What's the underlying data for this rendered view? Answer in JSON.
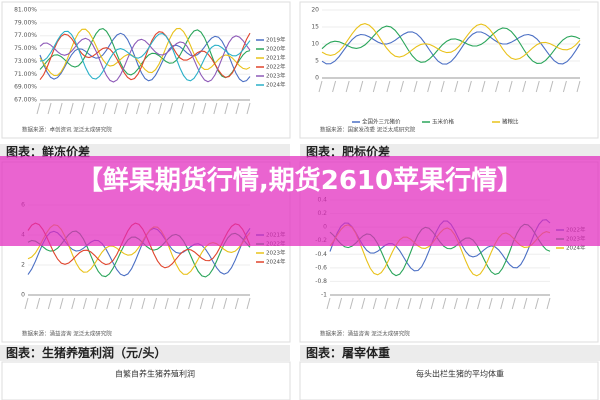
{
  "banner": {
    "title": "【鲜果期货行情,期货2610苹果行情】"
  },
  "panels": [
    {
      "yticks": [
        "81.00%",
        "79.00%",
        "77.00%",
        "75.00%",
        "73.00%",
        "71.00%",
        "69.00%",
        "67.00%"
      ],
      "legend": [
        "2019年",
        "2020年",
        "2021年",
        "2022年",
        "2023年",
        "2024年"
      ],
      "source": "数据来源：卓创资讯 泥泛太成研究院"
    },
    {
      "yticks": [
        "20",
        "15",
        "10",
        "5",
        "0"
      ],
      "legend": [
        "全国外三元猪价",
        "玉米价格",
        "猪粮比"
      ],
      "source": "数据来源：国家发改委 泥泛太成研究院"
    },
    {
      "header": "图表：鲜冻价差",
      "yticks": [
        "6",
        "4",
        "2",
        "0"
      ],
      "legend": [
        "2021年",
        "2022年",
        "2023年",
        "2024年"
      ],
      "source": "数据来源：涌益咨询 泥泛太成研究院"
    },
    {
      "header": "图表：肥标价差",
      "yticks": [
        "0.4",
        "0.2",
        "0",
        "-0.2",
        "-0.4",
        "-0.6",
        "-0.8",
        "-1"
      ],
      "legend": [
        "2022年",
        "2023年",
        "2024年"
      ],
      "source": "数据来源：涌益咨询 泥泛太成研究院"
    },
    {
      "header": "图表：生猪养殖利润（元/头）",
      "chart_title": "自繁自养生猪养殖利润"
    },
    {
      "header": "图表：屠宰体重",
      "chart_title": "每头出栏生猪的平均体重"
    }
  ]
}
